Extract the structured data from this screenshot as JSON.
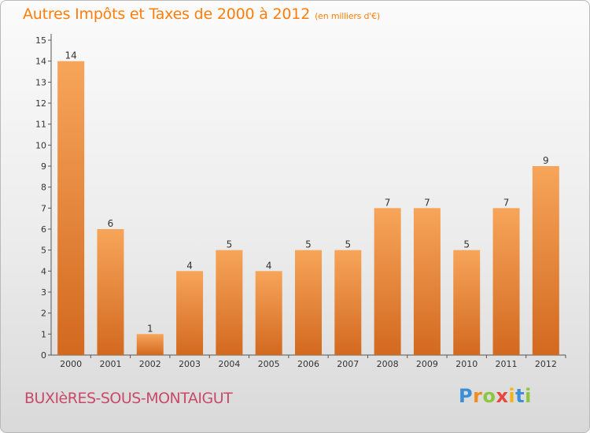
{
  "header": {
    "title": "Autres Impôts et Taxes de 2000 à 2012",
    "unit": "(en milliers d'€)"
  },
  "footer": {
    "commune": "BUXIèRES-SOUS-MONTAIGUT",
    "logo_letters": [
      "P",
      "r",
      "o",
      "x",
      "i",
      "t",
      "i"
    ],
    "logo_colors": [
      "#3a8fd6",
      "#f28c1a",
      "#8cc63f",
      "#e8463c",
      "#f6b21a",
      "#3a8fd6",
      "#8cc63f"
    ]
  },
  "colors": {
    "bar_top": "#f7a55a",
    "bar_bottom": "#d2691f",
    "axis": "#555555",
    "text": "#333333"
  },
  "chart_data": {
    "type": "bar",
    "categories": [
      "2000",
      "2001",
      "2002",
      "2003",
      "2004",
      "2005",
      "2006",
      "2007",
      "2008",
      "2009",
      "2010",
      "2011",
      "2012"
    ],
    "values": [
      14,
      6,
      1,
      4,
      5,
      4,
      5,
      5,
      7,
      7,
      5,
      7,
      9
    ],
    "ylim": [
      0,
      15
    ],
    "yticks": [
      0,
      1,
      2,
      3,
      4,
      5,
      6,
      7,
      8,
      9,
      10,
      11,
      12,
      13,
      14,
      15
    ],
    "grid": false
  }
}
